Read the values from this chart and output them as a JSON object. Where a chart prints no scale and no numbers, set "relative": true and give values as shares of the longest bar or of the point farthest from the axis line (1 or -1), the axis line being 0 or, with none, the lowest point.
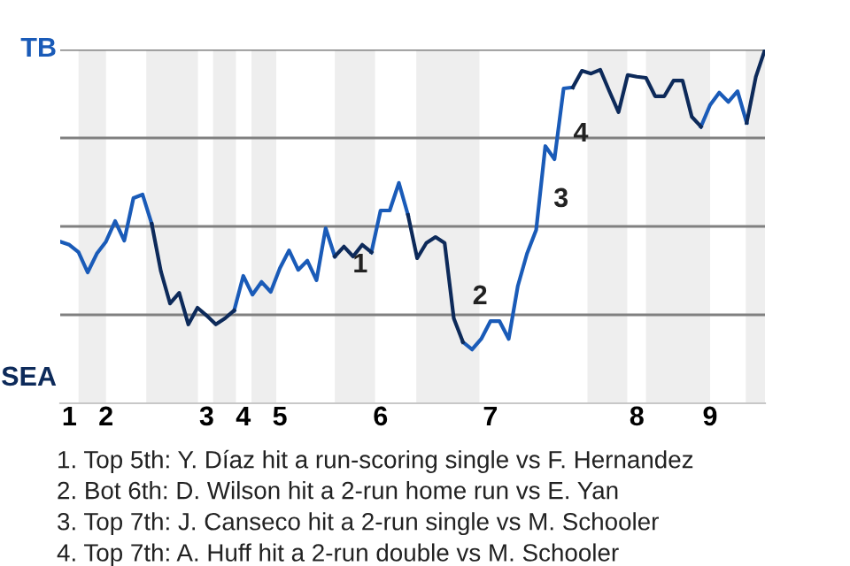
{
  "chart_data": {
    "type": "line",
    "relative": true,
    "categories": [
      null,
      "1",
      null,
      null,
      null,
      "2",
      null,
      null,
      null,
      null,
      null,
      null,
      null,
      null,
      null,
      null,
      "3",
      null,
      null,
      null,
      "4",
      null,
      null,
      null,
      "5",
      null,
      null,
      null,
      null,
      null,
      null,
      null,
      null,
      null,
      null,
      "6",
      null,
      null,
      null,
      null,
      null,
      null,
      null,
      null,
      null,
      null,
      null,
      "7",
      null,
      null,
      null,
      null,
      null,
      null,
      null,
      null,
      null,
      null,
      null,
      null,
      null,
      null,
      null,
      "8",
      null,
      null,
      null,
      null,
      null,
      null,
      null,
      "9",
      null,
      null,
      null,
      null,
      null,
      null
    ],
    "series": [
      {
        "color": "#1a5bb8",
        "values": [
          0.457,
          0.448,
          0.427,
          0.37,
          0.423,
          0.457,
          0.515,
          0.46,
          0.58,
          0.59,
          0.507,
          null,
          null,
          null,
          null,
          null,
          null,
          null,
          null,
          0.262,
          0.36,
          0.307,
          0.343,
          0.315,
          0.382,
          0.432,
          0.377,
          0.403,
          0.348,
          0.495,
          0.415,
          null,
          null,
          null,
          0.427,
          0.545,
          0.545,
          0.623,
          0.532,
          null,
          null,
          null,
          null,
          null,
          0.173,
          0.152,
          0.182,
          0.232,
          0.232,
          0.182,
          0.332,
          0.423,
          0.49,
          0.727,
          0.69,
          0.89,
          0.893,
          null,
          null,
          null,
          null,
          null,
          null,
          null,
          null,
          null,
          null,
          null,
          null,
          null,
          0.782,
          0.843,
          0.878,
          0.852,
          0.882,
          0.793,
          null,
          null
        ]
      },
      {
        "color": "#0d2a5a",
        "values": [
          null,
          null,
          null,
          null,
          null,
          null,
          null,
          null,
          null,
          null,
          0.507,
          0.373,
          0.282,
          0.312,
          0.223,
          0.27,
          0.248,
          0.223,
          0.24,
          0.262,
          null,
          null,
          null,
          null,
          null,
          null,
          null,
          null,
          null,
          null,
          0.415,
          0.443,
          0.415,
          0.448,
          0.427,
          null,
          null,
          null,
          0.532,
          0.41,
          0.453,
          0.47,
          0.453,
          0.24,
          0.173,
          null,
          null,
          null,
          null,
          null,
          null,
          null,
          null,
          null,
          null,
          null,
          0.893,
          0.94,
          0.932,
          0.943,
          0.882,
          0.823,
          0.928,
          0.923,
          0.92,
          0.868,
          0.868,
          0.912,
          0.912,
          0.81,
          0.782,
          null,
          null,
          null,
          null,
          0.793,
          0.923,
          1
        ]
      }
    ],
    "grid": "y",
    "annotations": [
      "TB",
      "SEA",
      "1",
      "2",
      "3",
      "4",
      "1. Top 5th: Y. Díaz hit a run-scoring single vs F. Hernandez",
      "2. Bot 6th: D. Wilson hit a 2-run home run vs E. Yan",
      "3. Top 7th: J. Canseco hit a 2-run single vs M. Schooler",
      "4. Top 7th: A. Huff hit a 2-run double vs M. Schooler"
    ]
  }
}
